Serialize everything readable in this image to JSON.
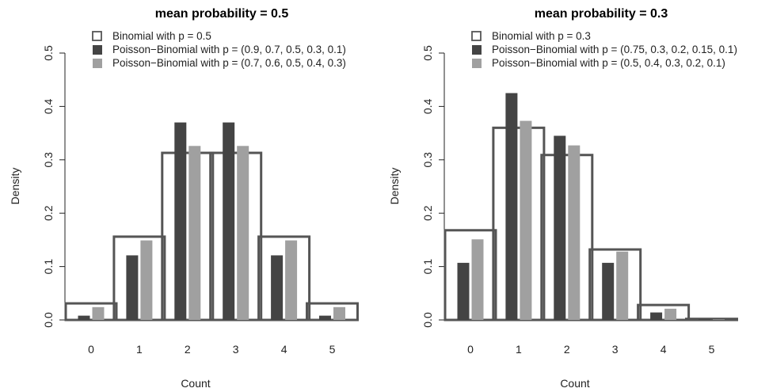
{
  "chart_data": [
    {
      "type": "bar",
      "title": "mean probability = 0.5",
      "xlabel": "Count",
      "ylabel": "Density",
      "categories": [
        "0",
        "1",
        "2",
        "3",
        "4",
        "5"
      ],
      "ylim": [
        0,
        0.5
      ],
      "yticks": [
        "0.0",
        "0.1",
        "0.2",
        "0.3",
        "0.4",
        "0.5"
      ],
      "legend_position": "top-left",
      "series": [
        {
          "name": "Binomial with p = 0.5",
          "style": "outline",
          "color": "#555555",
          "values": [
            0.031,
            0.156,
            0.313,
            0.313,
            0.156,
            0.031
          ]
        },
        {
          "name": "Poisson−Binomial with p = (0.9, 0.7, 0.5, 0.3, 0.1)",
          "style": "fill",
          "color": "#444444",
          "values": [
            0.008,
            0.121,
            0.37,
            0.37,
            0.121,
            0.008
          ]
        },
        {
          "name": "Poisson−Binomial with p = (0.7, 0.6, 0.5, 0.4, 0.3)",
          "style": "fill",
          "color": "#a0a0a0",
          "values": [
            0.024,
            0.149,
            0.326,
            0.326,
            0.149,
            0.024
          ]
        }
      ]
    },
    {
      "type": "bar",
      "title": "mean probability = 0.3",
      "xlabel": "Count",
      "ylabel": "Density",
      "categories": [
        "0",
        "1",
        "2",
        "3",
        "4",
        "5"
      ],
      "ylim": [
        0,
        0.5
      ],
      "yticks": [
        "0.0",
        "0.1",
        "0.2",
        "0.3",
        "0.4",
        "0.5"
      ],
      "legend_position": "top-left",
      "series": [
        {
          "name": "Binomial with p = 0.3",
          "style": "outline",
          "color": "#555555",
          "values": [
            0.168,
            0.36,
            0.309,
            0.132,
            0.028,
            0.002
          ]
        },
        {
          "name": "Poisson−Binomial with p = (0.75, 0.3, 0.2, 0.15, 0.1)",
          "style": "fill",
          "color": "#444444",
          "values": [
            0.107,
            0.425,
            0.345,
            0.107,
            0.014,
            0.001
          ]
        },
        {
          "name": "Poisson−Binomial with p = (0.5, 0.4, 0.3, 0.2, 0.1)",
          "style": "fill",
          "color": "#a0a0a0",
          "values": [
            0.151,
            0.373,
            0.327,
            0.128,
            0.021,
            0.001
          ]
        }
      ]
    }
  ]
}
